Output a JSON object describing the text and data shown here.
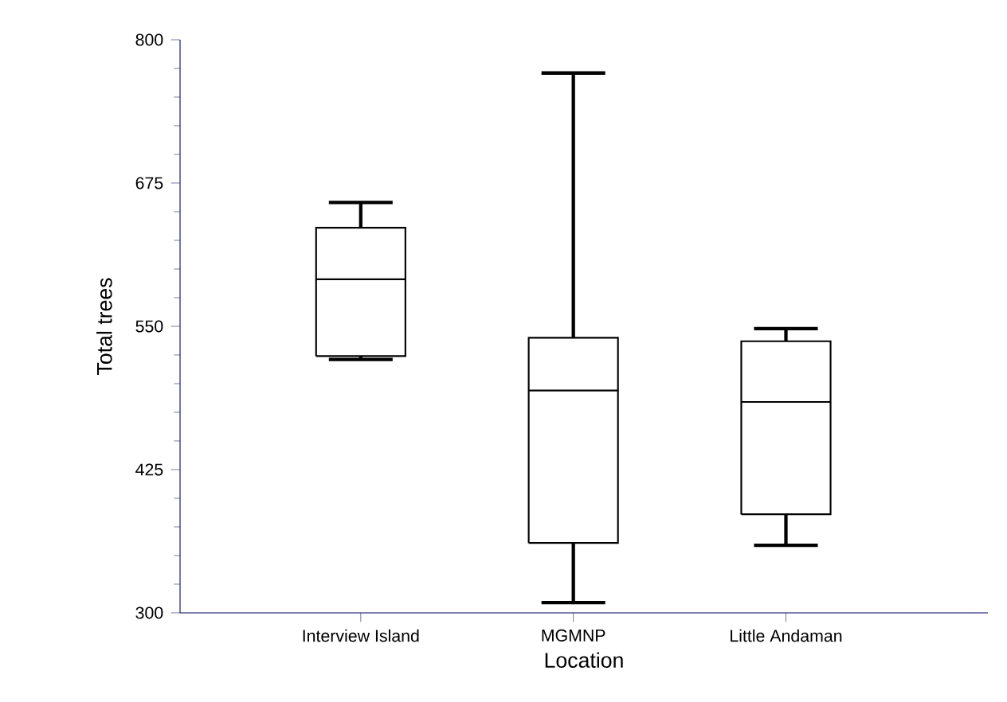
{
  "chart_data": {
    "type": "box",
    "xlabel": "Location",
    "ylabel": "Total trees",
    "categories": [
      "Interview Island",
      "MGMNP",
      "Little Andaman"
    ],
    "boxes": [
      {
        "low": 521,
        "q1": 524,
        "median": 591,
        "q3": 636,
        "high": 658
      },
      {
        "low": 309,
        "q1": 361,
        "median": 494,
        "q3": 540,
        "high": 771
      },
      {
        "low": 359,
        "q1": 386,
        "median": 484,
        "q3": 537,
        "high": 548
      }
    ],
    "ylim": [
      300,
      800
    ],
    "yticks": [
      300,
      425,
      550,
      675,
      800
    ],
    "grid": false
  }
}
